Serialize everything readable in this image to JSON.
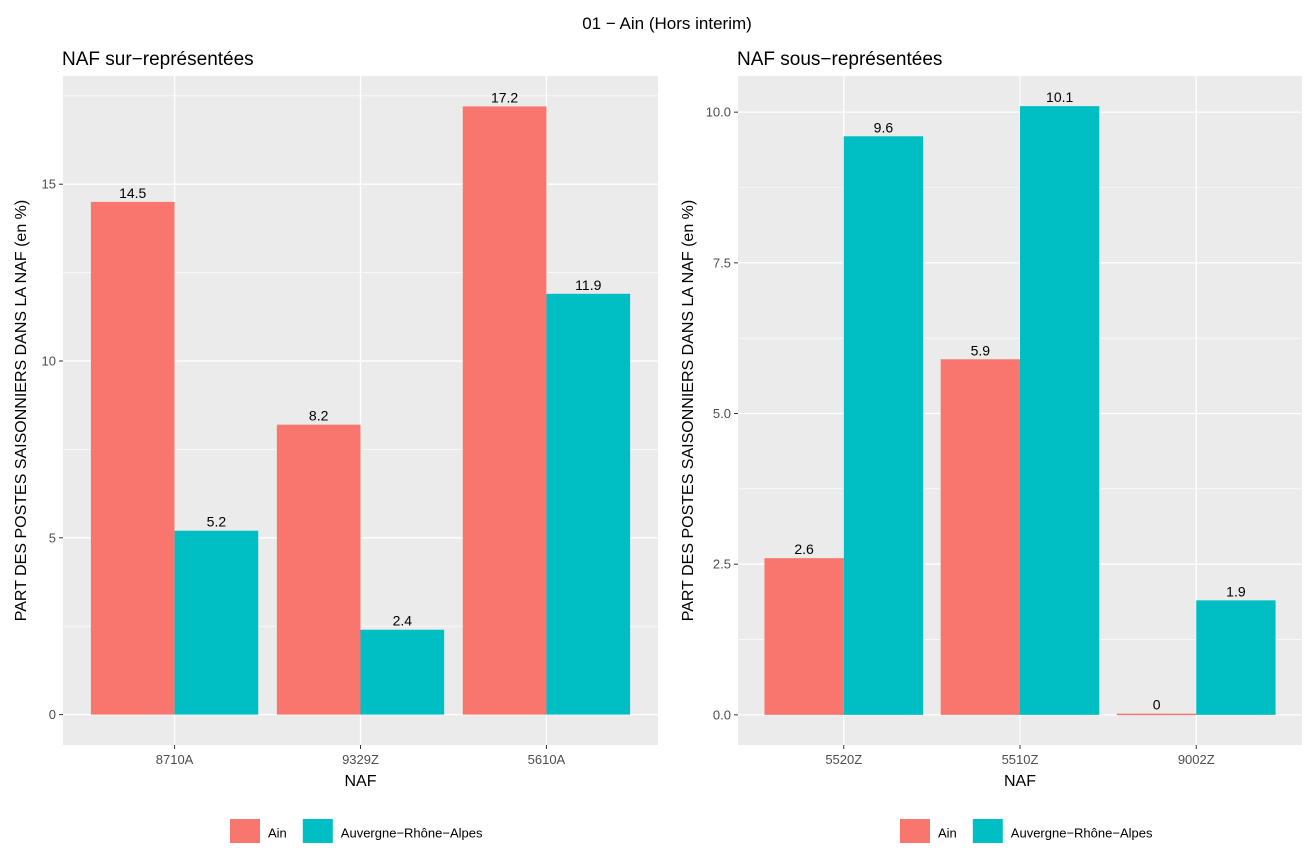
{
  "suptitle": "01 − Ain (Hors interim)",
  "legend_items": [
    {
      "label": "Ain",
      "color": "#F8766D"
    },
    {
      "label": "Auvergne−Rhône−Alpes",
      "color": "#00BFC4"
    }
  ],
  "chart_data": [
    {
      "type": "bar",
      "title": "NAF sur−représentées",
      "xlabel": "NAF",
      "ylabel": "PART DES POSTES SAISONNIERS DANS LA NAF (en %)",
      "categories": [
        "8710A",
        "9329Z",
        "5610A"
      ],
      "series": [
        {
          "name": "Ain",
          "color": "#F8766D",
          "values": [
            14.5,
            8.2,
            17.2
          ],
          "labels": [
            "14.5",
            "8.2",
            "17.2"
          ]
        },
        {
          "name": "Auvergne−Rhône−Alpes",
          "color": "#00BFC4",
          "values": [
            5.2,
            2.4,
            11.9
          ],
          "labels": [
            "5.2",
            "2.4",
            "11.9"
          ]
        }
      ],
      "ylim": [
        -0.86,
        18.06
      ],
      "yticks": [
        0,
        5,
        10,
        15
      ],
      "ytick_labels": [
        "0",
        "5",
        "10",
        "15"
      ],
      "grid": true,
      "legend_position": "bottom"
    },
    {
      "type": "bar",
      "title": "NAF sous−représentées",
      "xlabel": "NAF",
      "ylabel": "PART DES POSTES SAISONNIERS DANS LA NAF (en %)",
      "categories": [
        "5520Z",
        "5510Z",
        "9002Z"
      ],
      "series": [
        {
          "name": "Ain",
          "color": "#F8766D",
          "values": [
            2.6,
            5.9,
            0.02
          ],
          "labels": [
            "2.6",
            "5.9",
            "0"
          ]
        },
        {
          "name": "Auvergne−Rhône−Alpes",
          "color": "#00BFC4",
          "values": [
            9.6,
            10.1,
            1.9
          ],
          "labels": [
            "9.6",
            "10.1",
            "1.9"
          ]
        }
      ],
      "ylim": [
        -0.5,
        10.6
      ],
      "yticks": [
        0,
        2.5,
        5,
        7.5,
        10
      ],
      "ytick_labels": [
        "0.0",
        "2.5",
        "5.0",
        "7.5",
        "10.0"
      ],
      "grid": true,
      "legend_position": "bottom"
    }
  ]
}
